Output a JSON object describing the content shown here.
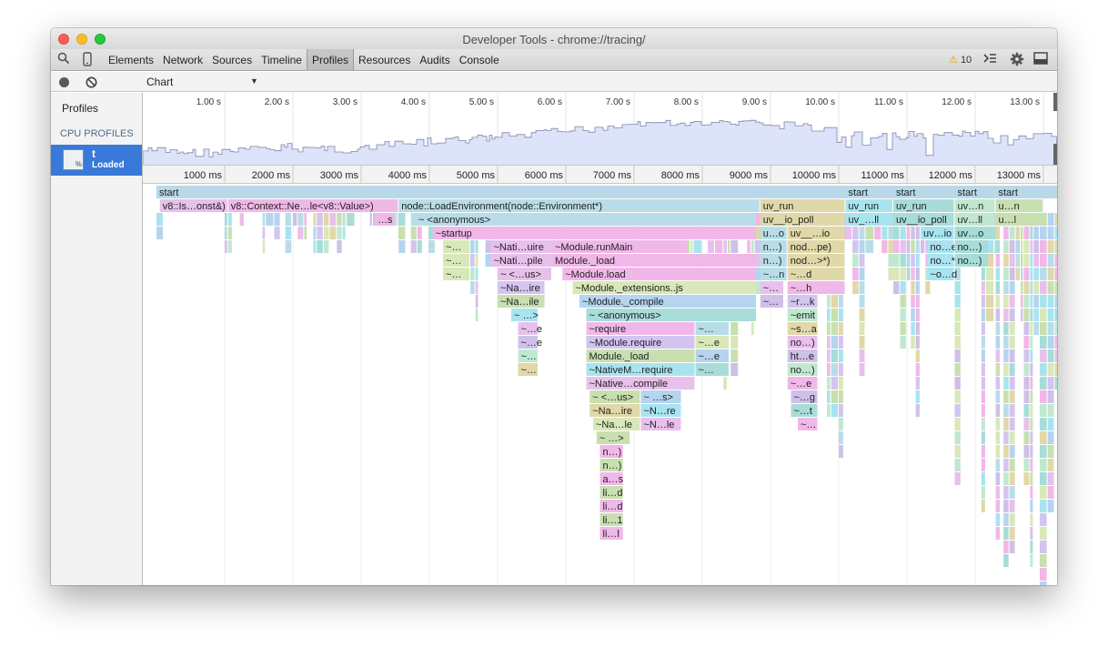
{
  "window": {
    "title": "Developer Tools - chrome://tracing/"
  },
  "toolbar": {
    "tabs": [
      "Elements",
      "Network",
      "Sources",
      "Timeline",
      "Profiles",
      "Resources",
      "Audits",
      "Console"
    ],
    "active_tab": "Profiles",
    "warning_count": "10"
  },
  "subbar": {
    "view_mode": "Chart"
  },
  "sidebar": {
    "heading": "Profiles",
    "section": "CPU PROFILES",
    "profile": {
      "name": "t",
      "status": "Loaded",
      "icon_text": "%"
    }
  },
  "overview": {
    "ticks": [
      "1.00 s",
      "2.00 s",
      "3.00 s",
      "4.00 s",
      "5.00 s",
      "6.00 s",
      "7.00 s",
      "8.00 s",
      "9.00 s",
      "10.00 s",
      "11.00 s",
      "12.00 s",
      "13.00 s"
    ]
  },
  "ruler": {
    "ticks": [
      "1000 ms",
      "2000 ms",
      "3000 ms",
      "4000 ms",
      "5000 ms",
      "6000 ms",
      "7000 ms",
      "8000 ms",
      "9000 ms",
      "10000 ms",
      "11000 ms",
      "12000 ms",
      "13000 ms"
    ]
  },
  "flame": {
    "bars": [
      {
        "d": 0,
        "s": 0,
        "e": 13.3,
        "t": "start"
      },
      {
        "d": 0,
        "s": 10.1,
        "e": 10.8,
        "t": "start"
      },
      {
        "d": 0,
        "s": 10.8,
        "e": 11.7,
        "t": "start"
      },
      {
        "d": 0,
        "s": 11.7,
        "e": 12.3,
        "t": "start"
      },
      {
        "d": 0,
        "s": 12.3,
        "e": 13.0,
        "t": "start"
      },
      {
        "d": 1,
        "s": 0.05,
        "e": 1.05,
        "t": "v8::Is…onst&)"
      },
      {
        "d": 1,
        "s": 1.05,
        "e": 3.55,
        "t": "v8::Context::Ne…le<v8::Value>)"
      },
      {
        "d": 1,
        "s": 3.55,
        "e": 8.85,
        "t": "node::LoadEnvironment(node::Environment*)"
      },
      {
        "d": 1,
        "s": 8.85,
        "e": 10.1,
        "t": "uv_run"
      },
      {
        "d": 1,
        "s": 10.1,
        "e": 10.8,
        "t": "uv_run"
      },
      {
        "d": 1,
        "s": 10.8,
        "e": 11.7,
        "t": "uv_run"
      },
      {
        "d": 1,
        "s": 11.7,
        "e": 12.3,
        "t": "uv…n"
      },
      {
        "d": 1,
        "s": 12.3,
        "e": 13.0,
        "t": "u…n"
      },
      {
        "d": 2,
        "s": 3.2,
        "e": 3.5,
        "t": "…s"
      },
      {
        "d": 2,
        "s": 3.8,
        "e": 8.8,
        "t": "~ <anonymous>"
      },
      {
        "d": 2,
        "s": 8.85,
        "e": 10.1,
        "t": "uv__io_poll"
      },
      {
        "d": 2,
        "s": 10.1,
        "e": 10.8,
        "t": "uv_…ll"
      },
      {
        "d": 2,
        "s": 10.8,
        "e": 11.7,
        "t": "uv__io_poll"
      },
      {
        "d": 2,
        "s": 11.7,
        "e": 12.3,
        "t": "uv…ll"
      },
      {
        "d": 2,
        "s": 12.3,
        "e": 13.0,
        "t": "u…l"
      },
      {
        "d": 3,
        "s": 4.05,
        "e": 8.8,
        "t": "~startup"
      },
      {
        "d": 3,
        "s": 8.85,
        "e": 9.25,
        "t": "u…o"
      },
      {
        "d": 3,
        "s": 9.25,
        "e": 10.1,
        "t": "uv__…io"
      },
      {
        "d": 3,
        "s": 11.2,
        "e": 11.7,
        "t": "uv…io"
      },
      {
        "d": 3,
        "s": 11.7,
        "e": 12.3,
        "t": "uv…o"
      },
      {
        "d": 4,
        "s": 4.2,
        "e": 4.6,
        "t": "~…"
      },
      {
        "d": 4,
        "s": 4.9,
        "e": 5.8,
        "t": "~Nati…uire"
      },
      {
        "d": 4,
        "s": 5.8,
        "e": 7.8,
        "t": "~Module.runMain"
      },
      {
        "d": 4,
        "s": 8.85,
        "e": 9.25,
        "t": "n…)"
      },
      {
        "d": 4,
        "s": 9.25,
        "e": 10.1,
        "t": "nod…pe)"
      },
      {
        "d": 4,
        "s": 11.3,
        "e": 11.7,
        "t": "no…e)"
      },
      {
        "d": 4,
        "s": 11.7,
        "e": 12.2,
        "t": "no…)"
      },
      {
        "d": 5,
        "s": 4.2,
        "e": 4.6,
        "t": "~…"
      },
      {
        "d": 5,
        "s": 4.9,
        "e": 5.8,
        "t": "~Nati…pile"
      },
      {
        "d": 5,
        "s": 5.8,
        "e": 8.8,
        "t": "Module._load"
      },
      {
        "d": 5,
        "s": 8.85,
        "e": 9.25,
        "t": "n…)"
      },
      {
        "d": 5,
        "s": 9.25,
        "e": 10.1,
        "t": "nod…>*)"
      },
      {
        "d": 5,
        "s": 11.3,
        "e": 11.7,
        "t": "no…*)"
      },
      {
        "d": 5,
        "s": 11.7,
        "e": 12.2,
        "t": "no…)"
      },
      {
        "d": 6,
        "s": 4.2,
        "e": 4.6,
        "t": "~…"
      },
      {
        "d": 6,
        "s": 5.0,
        "e": 5.8,
        "t": "~ <…us>"
      },
      {
        "d": 6,
        "s": 5.95,
        "e": 8.8,
        "t": "~Module.load"
      },
      {
        "d": 6,
        "s": 8.85,
        "e": 9.25,
        "t": "~…n"
      },
      {
        "d": 6,
        "s": 9.25,
        "e": 10.1,
        "t": "~…d"
      },
      {
        "d": 6,
        "s": 11.3,
        "e": 11.7,
        "t": "~o…d"
      },
      {
        "d": 7,
        "s": 5.0,
        "e": 5.7,
        "t": "~Na…ire"
      },
      {
        "d": 7,
        "s": 6.1,
        "e": 8.8,
        "t": "~Module._extensions..js"
      },
      {
        "d": 7,
        "s": 8.85,
        "e": 9.2,
        "t": "~…"
      },
      {
        "d": 7,
        "s": 9.25,
        "e": 10.1,
        "t": "~…h"
      },
      {
        "d": 8,
        "s": 5.0,
        "e": 5.7,
        "t": "~Na…ile"
      },
      {
        "d": 8,
        "s": 6.2,
        "e": 8.8,
        "t": "~Module._compile"
      },
      {
        "d": 8,
        "s": 8.85,
        "e": 9.2,
        "t": "~…"
      },
      {
        "d": 8,
        "s": 9.25,
        "e": 9.7,
        "t": "~r…k"
      },
      {
        "d": 9,
        "s": 5.2,
        "e": 5.6,
        "t": "~ …>"
      },
      {
        "d": 9,
        "s": 6.3,
        "e": 8.8,
        "t": "~ <anonymous>"
      },
      {
        "d": 9,
        "s": 9.25,
        "e": 9.7,
        "t": "~emit"
      },
      {
        "d": 10,
        "s": 5.3,
        "e": 5.6,
        "t": "~…e"
      },
      {
        "d": 10,
        "s": 6.3,
        "e": 7.9,
        "t": "~require"
      },
      {
        "d": 10,
        "s": 7.9,
        "e": 8.4,
        "t": "~…"
      },
      {
        "d": 10,
        "s": 9.25,
        "e": 9.7,
        "t": "~s…a"
      },
      {
        "d": 11,
        "s": 5.3,
        "e": 5.6,
        "t": "~…e"
      },
      {
        "d": 11,
        "s": 6.3,
        "e": 7.9,
        "t": "~Module.require"
      },
      {
        "d": 11,
        "s": 7.9,
        "e": 8.4,
        "t": "~…e"
      },
      {
        "d": 11,
        "s": 9.25,
        "e": 9.7,
        "t": "no…)"
      },
      {
        "d": 12,
        "s": 5.3,
        "e": 5.6,
        "t": "~…"
      },
      {
        "d": 12,
        "s": 6.3,
        "e": 7.9,
        "t": "Module._load"
      },
      {
        "d": 12,
        "s": 7.9,
        "e": 8.4,
        "t": "~…e"
      },
      {
        "d": 12,
        "s": 9.25,
        "e": 9.7,
        "t": "ht…e"
      },
      {
        "d": 13,
        "s": 5.3,
        "e": 5.6,
        "t": "~…"
      },
      {
        "d": 13,
        "s": 6.3,
        "e": 7.9,
        "t": "~NativeM…require"
      },
      {
        "d": 13,
        "s": 7.9,
        "e": 8.4,
        "t": "~…"
      },
      {
        "d": 13,
        "s": 9.25,
        "e": 9.7,
        "t": "no…)"
      },
      {
        "d": 14,
        "s": 6.3,
        "e": 7.9,
        "t": "~Native…compile"
      },
      {
        "d": 14,
        "s": 9.25,
        "e": 9.7,
        "t": "~…e"
      },
      {
        "d": 15,
        "s": 6.35,
        "e": 7.1,
        "t": "~ <…us>"
      },
      {
        "d": 15,
        "s": 7.1,
        "e": 7.7,
        "t": "~ …s>"
      },
      {
        "d": 15,
        "s": 9.3,
        "e": 9.7,
        "t": "~…g"
      },
      {
        "d": 16,
        "s": 6.35,
        "e": 7.1,
        "t": "~Na…ire"
      },
      {
        "d": 16,
        "s": 7.1,
        "e": 7.7,
        "t": "~N…re"
      },
      {
        "d": 16,
        "s": 9.3,
        "e": 9.7,
        "t": "~…t"
      },
      {
        "d": 17,
        "s": 6.4,
        "e": 7.1,
        "t": "~Na…le"
      },
      {
        "d": 17,
        "s": 7.1,
        "e": 7.7,
        "t": "~N…le"
      },
      {
        "d": 17,
        "s": 9.4,
        "e": 9.7,
        "t": "~…"
      },
      {
        "d": 18,
        "s": 6.45,
        "e": 6.95,
        "t": "~ …>"
      },
      {
        "d": 19,
        "s": 6.5,
        "e": 6.85,
        "t": "n…)"
      },
      {
        "d": 20,
        "s": 6.5,
        "e": 6.85,
        "t": "n…)"
      },
      {
        "d": 21,
        "s": 6.5,
        "e": 6.85,
        "t": "a…s"
      },
      {
        "d": 22,
        "s": 6.5,
        "e": 6.85,
        "t": "li…d"
      },
      {
        "d": 23,
        "s": 6.5,
        "e": 6.85,
        "t": "li…d"
      },
      {
        "d": 24,
        "s": 6.5,
        "e": 6.85,
        "t": "li…1"
      },
      {
        "d": 25,
        "s": 6.5,
        "e": 6.85,
        "t": "li…l"
      }
    ]
  }
}
